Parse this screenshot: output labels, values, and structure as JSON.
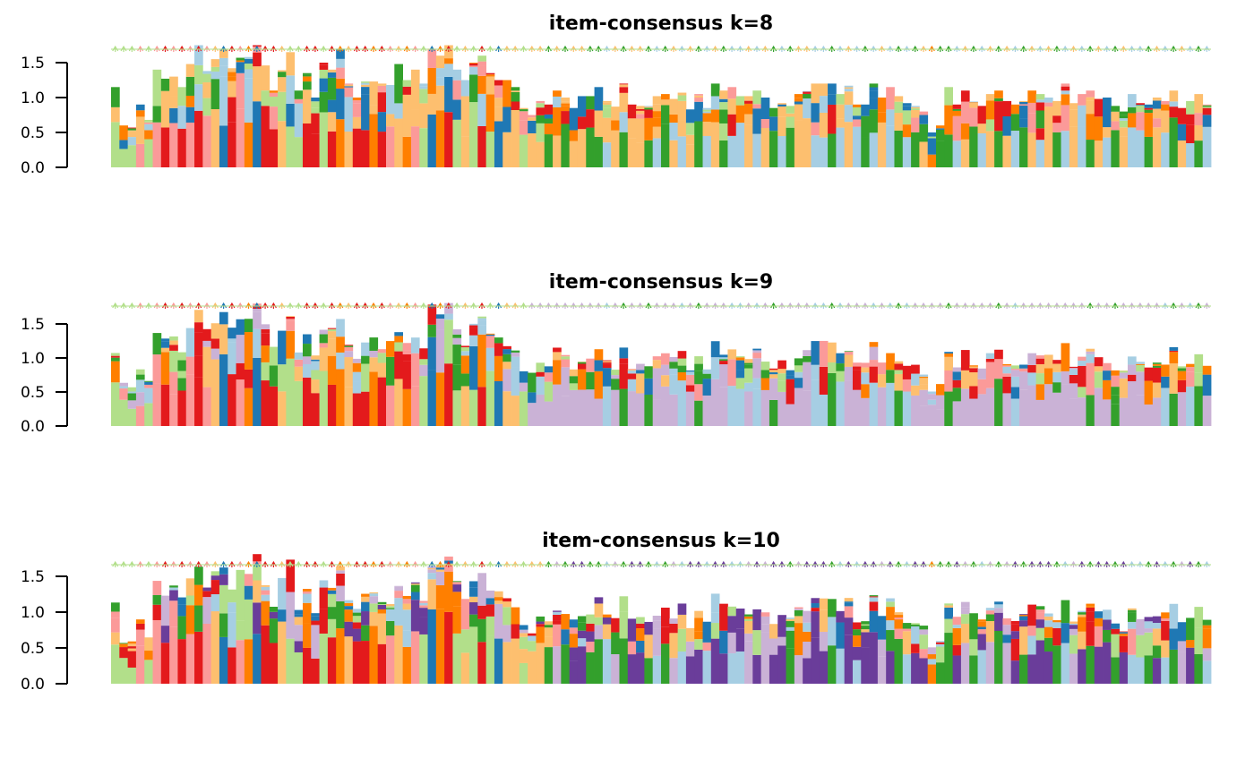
{
  "chart_data": [
    {
      "type": "bar",
      "title": "item-consensus k=8",
      "xlabel": "",
      "ylabel": "",
      "ylim": [
        0,
        1.75
      ],
      "yticks": [
        0.0,
        0.5,
        1.0,
        1.5
      ],
      "ytick_labels": [
        "0.0",
        "0.5",
        "1.0",
        "1.5"
      ],
      "n_items": 132,
      "item_totals": [
        1.15,
        0.6,
        0.57,
        0.9,
        0.68,
        1.4,
        1.27,
        1.3,
        1.15,
        1.48,
        1.75,
        1.38,
        1.55,
        1.7,
        1.42,
        1.57,
        1.58,
        1.75,
        1.46,
        1.1,
        1.4,
        1.65,
        1.1,
        1.35,
        1.0,
        1.5,
        1.4,
        1.7,
        1.2,
        1.0,
        1.23,
        1.23,
        1.2,
        1.18,
        1.48,
        1.25,
        1.4,
        1.2,
        1.7,
        1.6,
        1.75,
        1.4,
        1.25,
        1.5,
        1.6,
        1.35,
        1.25,
        1.25,
        1.15,
        0.85,
        0.75,
        0.95,
        0.9,
        1.1,
        1.0,
        0.85,
        1.02,
        1.02,
        1.15,
        0.95,
        0.87,
        1.2,
        0.9,
        0.88,
        0.88,
        1.02,
        1.05,
        0.98,
        1.07,
        0.83,
        1.05,
        0.85,
        1.2,
        1.1,
        1.15,
        1.02,
        1.02,
        1.1,
        1.0,
        0.85,
        0.92,
        0.88,
        1.05,
        1.1,
        1.2,
        1.2,
        1.2,
        1.05,
        1.17,
        0.9,
        0.9,
        1.2,
        1.0,
        1.15,
        1.02,
        0.92,
        0.88,
        0.8,
        0.5,
        0.6,
        1.15,
        0.9,
        1.1,
        0.95,
        0.88,
        1.05,
        1.1,
        0.95,
        0.9,
        0.95,
        1.1,
        1.05,
        1.0,
        0.95,
        1.2,
        0.92,
        1.05,
        1.1,
        0.98,
        1.0,
        0.88,
        0.8,
        1.05,
        0.92,
        0.9,
        1.0,
        0.95,
        1.1,
        0.85,
        0.95,
        1.05,
        0.9
      ],
      "dominant_class": [
        5,
        5,
        5,
        3,
        5,
        3,
        2,
        3,
        2,
        3,
        2,
        3,
        6,
        1,
        2,
        3,
        4,
        1,
        2,
        2,
        6,
        5,
        5,
        2,
        2,
        5,
        2,
        4,
        6,
        2,
        2,
        4,
        2,
        3,
        6,
        4,
        3,
        5,
        1,
        4,
        2,
        5,
        6,
        5,
        2,
        5,
        1,
        6,
        6,
        5,
        6,
        6,
        7,
        8,
        7,
        8,
        8,
        7,
        7,
        0,
        8,
        7,
        8,
        8,
        7,
        0,
        7,
        8,
        0,
        8,
        7,
        0,
        8,
        7,
        0,
        0,
        8,
        0,
        8,
        7,
        0,
        7,
        8,
        8,
        0,
        0,
        7,
        0,
        8,
        0,
        7,
        0,
        8,
        0,
        7,
        0,
        7,
        8,
        4,
        7,
        7,
        0,
        8,
        7,
        0,
        8,
        7,
        8,
        0,
        7,
        8,
        0,
        8,
        7,
        0,
        8,
        0,
        7,
        8,
        0,
        7,
        8,
        0,
        0,
        7,
        8,
        0,
        7,
        8,
        0,
        7,
        0
      ],
      "class_colors": [
        "#A6CEE3",
        "#1F78B4",
        "#E31A1C",
        "#FB9A99",
        "#FF7F00",
        "#B2DF8A",
        "#FDBF6F",
        "#33A02C",
        "#FDBF6F"
      ]
    },
    {
      "type": "bar",
      "title": "item-consensus k=9",
      "xlabel": "",
      "ylabel": "",
      "ylim": [
        0,
        1.75
      ],
      "yticks": [
        0.0,
        0.5,
        1.0,
        1.5
      ],
      "ytick_labels": [
        "0.0",
        "0.5",
        "1.0",
        "1.5"
      ],
      "n_items": 132,
      "class_colors": [
        "#A6CEE3",
        "#1F78B4",
        "#E31A1C",
        "#FB9A99",
        "#FF7F00",
        "#B2DF8A",
        "#FDBF6F",
        "#33A02C",
        "#CAB2D6"
      ]
    },
    {
      "type": "bar",
      "title": "item-consensus k=10",
      "xlabel": "",
      "ylabel": "",
      "ylim": [
        0,
        1.75
      ],
      "yticks": [
        0.0,
        0.5,
        1.0,
        1.5
      ],
      "ytick_labels": [
        "0.0",
        "0.5",
        "1.0",
        "1.5"
      ],
      "n_items": 132,
      "class_colors": [
        "#A6CEE3",
        "#1F78B4",
        "#E31A1C",
        "#FB9A99",
        "#FF7F00",
        "#B2DF8A",
        "#FDBF6F",
        "#33A02C",
        "#CAB2D6",
        "#6A3D9A"
      ]
    }
  ]
}
